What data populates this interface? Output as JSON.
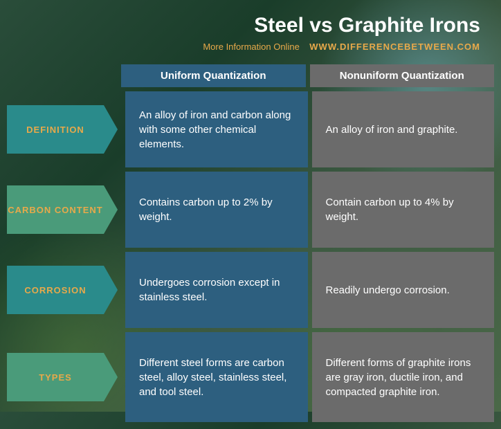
{
  "header": {
    "title": "Steel vs Graphite Irons",
    "sub_label": "More Information  Online",
    "link_text": "WWW.DIFFERENCEBETWEEN.COM"
  },
  "columns": {
    "col1": "Uniform Quantization",
    "col2": "Nonuniform Quantization"
  },
  "rows": [
    {
      "label": "DEFINITION",
      "label_color": "teal",
      "c1": "An alloy of iron and carbon along with some other chemical elements.",
      "c2": "An alloy of iron and graphite."
    },
    {
      "label": "CARBON CONTENT",
      "label_color": "green",
      "c1": "Contains carbon up to 2% by weight.",
      "c2": "Contain carbon up to 4% by weight."
    },
    {
      "label": "CORROSION",
      "label_color": "teal",
      "c1": "Undergoes corrosion except in stainless steel.",
      "c2": "Readily undergo corrosion."
    },
    {
      "label": "TYPES",
      "label_color": "green",
      "c1": "Different steel forms are carbon steel, alloy steel, stainless steel, and tool steel.",
      "c2": "Different forms of graphite irons are gray iron, ductile iron, and compacted graphite iron."
    }
  ],
  "colors": {
    "title": "#ffffff",
    "accent": "#e8a94a",
    "col1_bg": "#2d5f7f",
    "col2_bg": "#6b6b6b",
    "teal": "#2a8b8b",
    "green": "#4a9b7a",
    "cell_text": "#ffffff"
  }
}
